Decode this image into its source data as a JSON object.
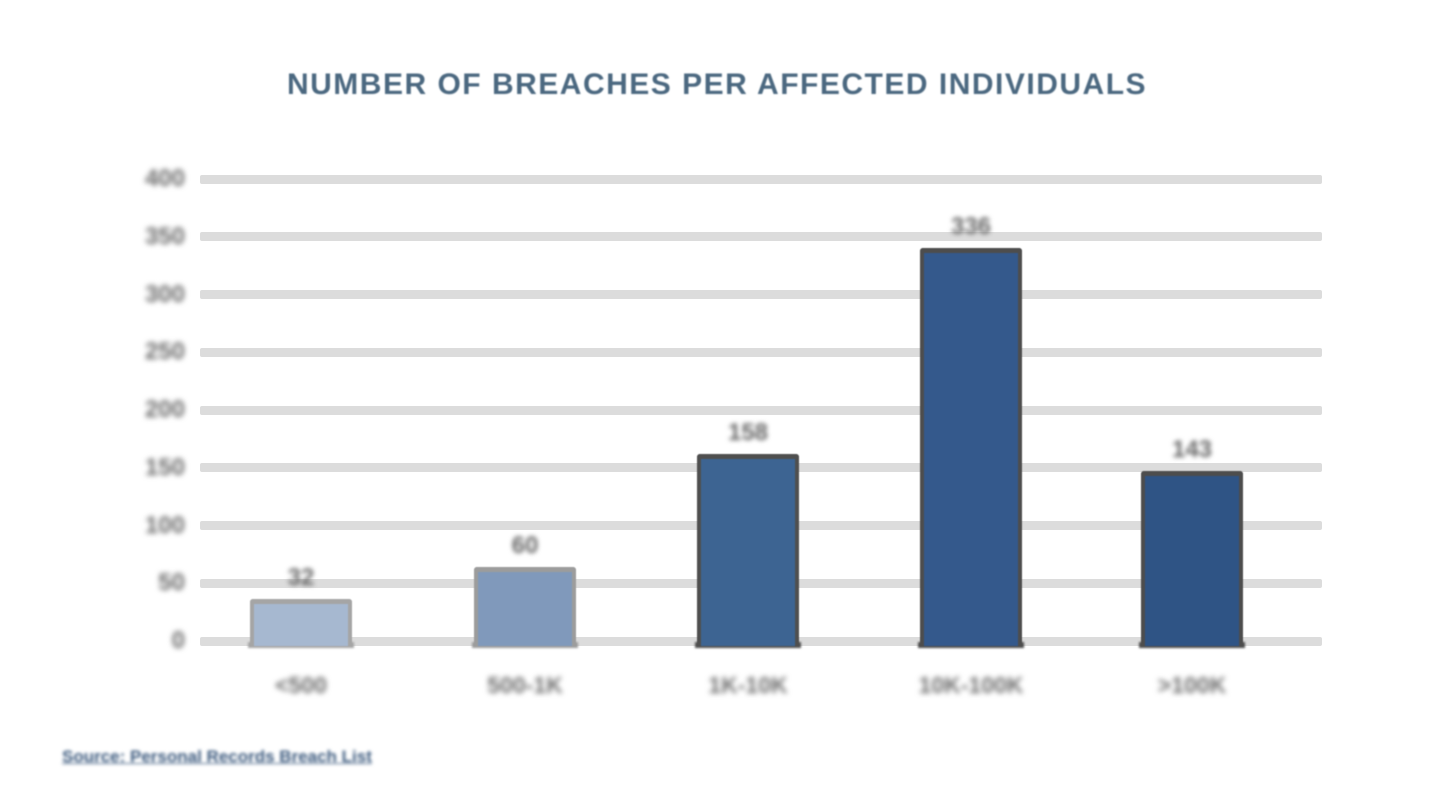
{
  "title": "NUMBER OF BREACHES PER AFFECTED INDIVIDUALS",
  "chart_data": {
    "type": "bar",
    "title": "NUMBER OF BREACHES PER AFFECTED INDIVIDUALS",
    "categories": [
      "<500",
      "500-1K",
      "1K-10K",
      "10K-100K",
      ">100K"
    ],
    "values": [
      32,
      60,
      158,
      336,
      143
    ],
    "value_labels": [
      "32",
      "60",
      "158",
      "336",
      "143"
    ],
    "xlabel": "",
    "ylabel": "",
    "ylim": [
      0,
      400
    ],
    "yticks": [
      "400",
      "350",
      "300",
      "250",
      "200",
      "150",
      "100",
      "50",
      "0"
    ],
    "grid": "horizontal",
    "legend": "none",
    "bar_colors": [
      "#a6b8d0",
      "#8099bb",
      "#3d6492",
      "#34598c",
      "#2f5485"
    ],
    "bar_border_colors": [
      "#a5a5a5",
      "#9c9c9c",
      "#4f4f4f",
      "#4d4d4d",
      "#4d4d4d"
    ]
  },
  "footer": {
    "source_link": "Source: Personal Records Breach List"
  },
  "colors": {
    "title_text": "#4b6880",
    "axis_text": "#6c6c6c",
    "gridline": "#dcdcdc",
    "background": "#ffffff",
    "link_text": "#3c5a7e"
  }
}
